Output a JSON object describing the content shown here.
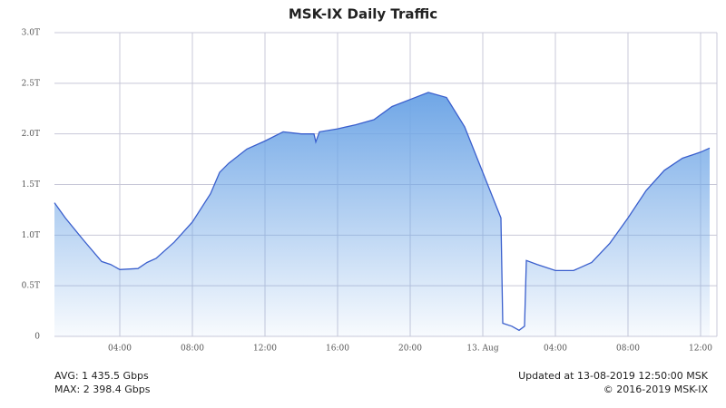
{
  "chart_data": {
    "type": "area",
    "title": "MSK-IX Daily Traffic",
    "x": [
      0.4,
      1,
      2,
      3,
      3.5,
      4,
      5,
      5.5,
      6,
      7,
      8,
      9,
      9.5,
      10,
      11,
      12,
      13,
      14,
      14.7,
      14.8,
      15,
      16,
      17,
      18,
      19,
      20,
      21,
      22,
      23,
      24,
      25,
      25.1,
      25.6,
      26,
      26.3,
      26.4,
      27,
      28,
      29,
      30,
      31,
      32,
      33,
      34,
      35,
      36,
      36.5
    ],
    "series": [
      {
        "name": "Traffic",
        "color": "#3a5fcd",
        "values": [
          1.32,
          1.17,
          0.95,
          0.74,
          0.71,
          0.66,
          0.67,
          0.73,
          0.77,
          0.93,
          1.13,
          1.41,
          1.62,
          1.71,
          1.85,
          1.93,
          2.02,
          2.0,
          2.0,
          1.92,
          2.02,
          2.05,
          2.09,
          2.14,
          2.27,
          2.34,
          2.41,
          2.36,
          2.07,
          1.62,
          1.17,
          0.13,
          0.1,
          0.06,
          0.1,
          0.75,
          0.71,
          0.65,
          0.65,
          0.73,
          0.92,
          1.17,
          1.44,
          1.64,
          1.76,
          1.82,
          1.86
        ]
      }
    ],
    "xlim": [
      0.4,
      36.9
    ],
    "xticks": [
      {
        "value": 4,
        "label": "04:00"
      },
      {
        "value": 8,
        "label": "08:00"
      },
      {
        "value": 12,
        "label": "12:00"
      },
      {
        "value": 16,
        "label": "16:00"
      },
      {
        "value": 20,
        "label": "20:00"
      },
      {
        "value": 24,
        "label": "13. Aug"
      },
      {
        "value": 28,
        "label": "04:00"
      },
      {
        "value": 32,
        "label": "08:00"
      },
      {
        "value": 36,
        "label": "12:00"
      }
    ],
    "ylim": [
      0,
      3
    ],
    "yticks": [
      0,
      {
        "value": 0.5,
        "label": "0.5T"
      },
      {
        "value": 1,
        "label": "1.0T"
      },
      {
        "value": 1.5,
        "label": "1.5T"
      },
      {
        "value": 2,
        "label": "2.0T"
      },
      {
        "value": 2.5,
        "label": "2.5T"
      },
      {
        "value": 3,
        "label": "3.0T"
      }
    ],
    "grid": true,
    "annotations": [
      "AVG: 1 435.5 Gbps",
      "MAX: 2 398.4 Gbps",
      "Updated at 13-08-2019 12:50:00 MSK",
      "© 2016-2019 MSK-IX"
    ]
  }
}
